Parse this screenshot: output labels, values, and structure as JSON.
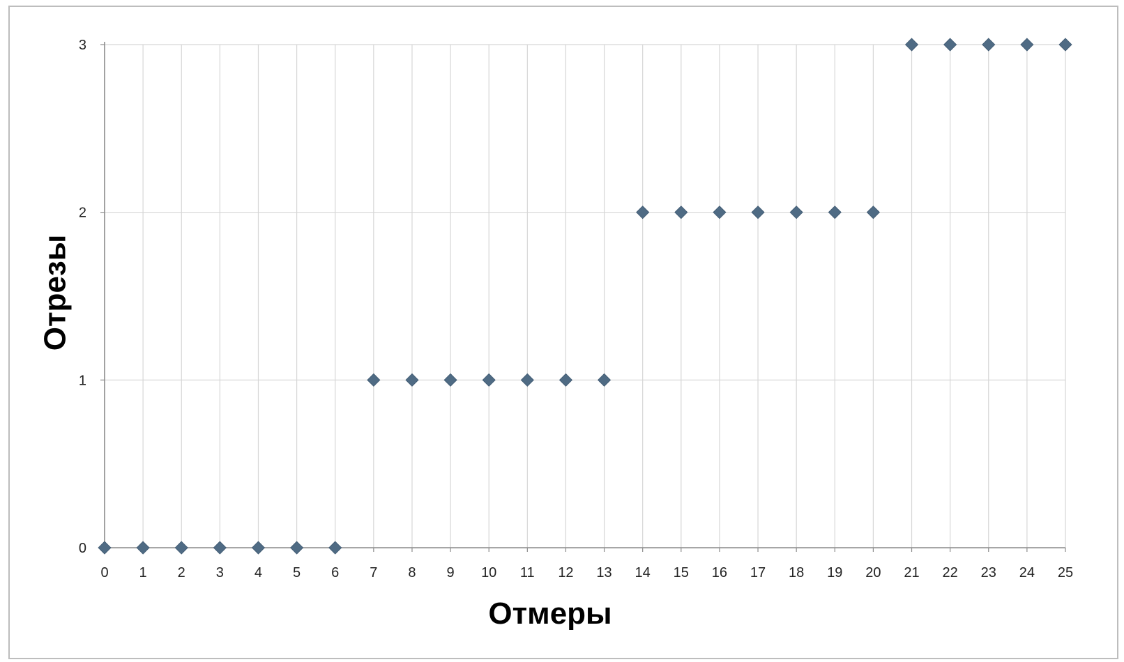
{
  "chart_data": {
    "type": "scatter",
    "title": "",
    "xlabel": "Отмеры",
    "ylabel": "Отрезы",
    "xlim": [
      0,
      25
    ],
    "ylim": [
      0,
      3
    ],
    "x_ticks": [
      "0",
      "1",
      "2",
      "3",
      "4",
      "5",
      "6",
      "7",
      "8",
      "9",
      "10",
      "11",
      "12",
      "13",
      "14",
      "15",
      "16",
      "17",
      "18",
      "19",
      "20",
      "21",
      "22",
      "23",
      "24",
      "25"
    ],
    "y_ticks": [
      "0",
      "1",
      "2",
      "3"
    ],
    "grid": true,
    "legend": "none",
    "marker": "diamond",
    "colors": {
      "marker": "#4f6b84",
      "grid": "#d6d6d6",
      "axis": "#8c8c8c"
    },
    "series": [
      {
        "x": [
          0,
          1,
          2,
          3,
          4,
          5,
          6,
          7,
          8,
          9,
          10,
          11,
          12,
          13,
          14,
          15,
          16,
          17,
          18,
          19,
          20,
          21,
          22,
          23,
          24,
          25
        ],
        "y": [
          0,
          0,
          0,
          0,
          0,
          0,
          0,
          1,
          1,
          1,
          1,
          1,
          1,
          1,
          2,
          2,
          2,
          2,
          2,
          2,
          2,
          3,
          3,
          3,
          3,
          3
        ]
      }
    ]
  }
}
